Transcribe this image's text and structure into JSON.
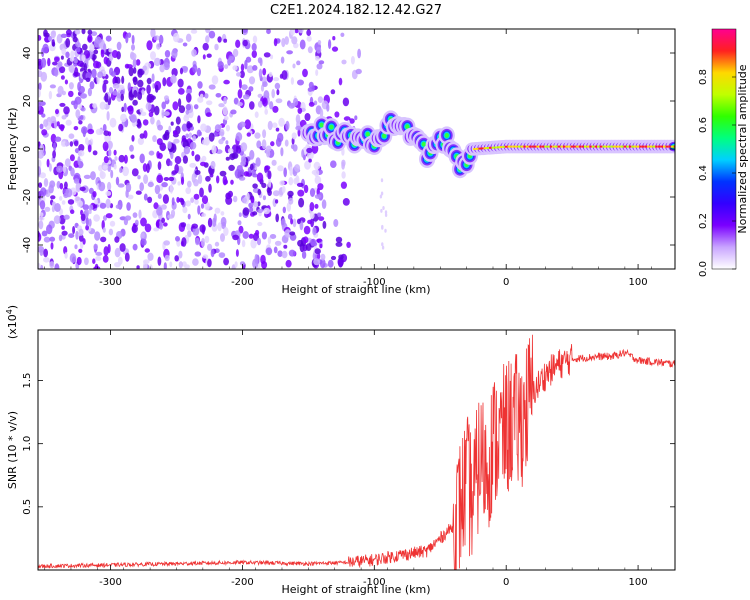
{
  "title": "C2E1.2024.182.12.42.G27",
  "chart_data": [
    {
      "type": "heatmap",
      "xlabel": "Height of straight line (km)",
      "ylabel": "Frequency (Hz)",
      "xlim": [
        -355,
        128
      ],
      "ylim": [
        -50,
        50
      ],
      "xticks": [
        -300,
        -200,
        -100,
        0,
        100
      ],
      "yticks": [
        -40,
        -20,
        0,
        20,
        40
      ],
      "colorbar": {
        "label": "Normalized spectral amplitude",
        "range": [
          0,
          1
        ],
        "ticks": [
          "0.0",
          "0.2",
          "0.4",
          "0.6",
          "0.8"
        ],
        "colormap": [
          "#ffffff",
          "#c9a5ff",
          "#7a00ff",
          "#3300ff",
          "#0033ff",
          "#00d0ff",
          "#00ff80",
          "#30ff00",
          "#c0ff00",
          "#ffd800",
          "#ff2020",
          "#ff0090"
        ]
      },
      "features": {
        "scatter_region_x": [
          -355,
          -125
        ],
        "signal_track": [
          {
            "x": -150,
            "y": 8
          },
          {
            "x": -120,
            "y": 5
          },
          {
            "x": -100,
            "y": 3
          },
          {
            "x": -90,
            "y": 10
          },
          {
            "x": -70,
            "y": 7
          },
          {
            "x": -60,
            "y": -2
          },
          {
            "x": -45,
            "y": 5
          },
          {
            "x": -35,
            "y": -8
          },
          {
            "x": -25,
            "y": 0
          },
          {
            "x": 0,
            "y": 1
          },
          {
            "x": 60,
            "y": 1
          },
          {
            "x": 90,
            "y": 1
          },
          {
            "x": 128,
            "y": 1
          }
        ]
      }
    },
    {
      "type": "line",
      "xlabel": "Height of straight line (km)",
      "ylabel": "SNR (10 * v/v)",
      "multiplier": "(x10",
      "multiplier_exp": "4",
      "xlim": [
        -355,
        128
      ],
      "ylim": [
        0,
        1.9
      ],
      "xticks": [
        -300,
        -200,
        -100,
        0,
        100
      ],
      "yticks": [
        "0.5",
        "1.0",
        "1.5"
      ],
      "ytick_values": [
        0.5,
        1.0,
        1.5
      ],
      "color": "#ee3333",
      "series": [
        {
          "x": [
            -355,
            -300,
            -250,
            -200,
            -150,
            -120,
            -100,
            -80,
            -60,
            -50,
            -40,
            -35,
            -30,
            -25,
            -20,
            -15,
            -10,
            -5,
            0,
            5,
            10,
            20,
            30,
            40,
            50,
            60,
            70,
            80,
            90,
            100,
            110,
            128
          ],
          "y": [
            0.03,
            0.04,
            0.05,
            0.06,
            0.05,
            0.06,
            0.08,
            0.12,
            0.15,
            0.25,
            0.35,
            0.5,
            0.7,
            0.55,
            0.9,
            0.8,
            1.0,
            1.05,
            1.1,
            1.2,
            1.15,
            1.4,
            1.55,
            1.63,
            1.67,
            1.68,
            1.69,
            1.69,
            1.72,
            1.66,
            1.65,
            1.63
          ]
        }
      ]
    }
  ]
}
